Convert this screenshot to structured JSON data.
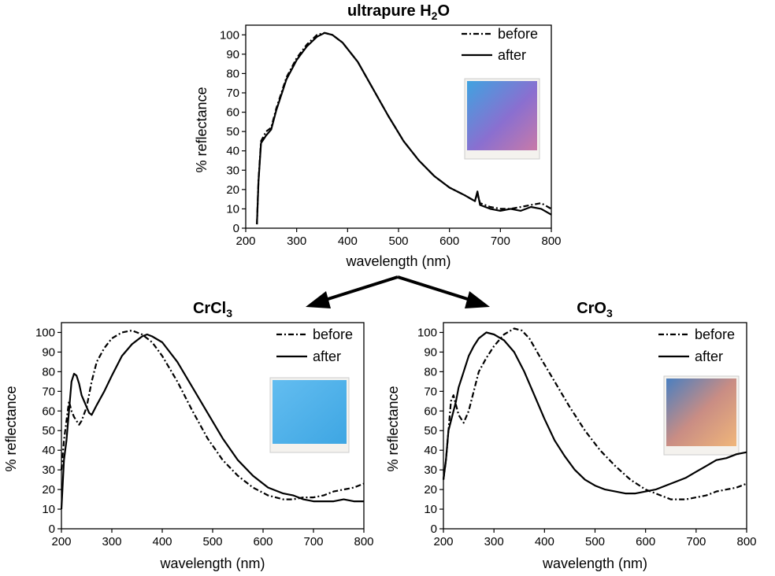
{
  "chart_data": [
    {
      "type": "line",
      "title": "ultrapure H",
      "title_sub": "2",
      "title_suffix": "O",
      "xlabel": "wavelength (nm)",
      "ylabel": "% reflectance",
      "xlim": [
        200,
        800
      ],
      "ylim": [
        0,
        105
      ],
      "xticks": [
        200,
        300,
        400,
        500,
        600,
        700,
        800
      ],
      "yticks": [
        0,
        10,
        20,
        30,
        40,
        50,
        60,
        70,
        80,
        90,
        100
      ],
      "legend_position": "top-right",
      "inset_color": "#8a6fd0",
      "series": [
        {
          "name": "before",
          "style": "dash-dot",
          "points": [
            [
              222,
              2
            ],
            [
              225,
              25
            ],
            [
              230,
              45
            ],
            [
              240,
              50
            ],
            [
              250,
              52
            ],
            [
              260,
              62
            ],
            [
              280,
              78
            ],
            [
              300,
              88
            ],
            [
              320,
              95
            ],
            [
              340,
              100
            ],
            [
              355,
              101
            ],
            [
              370,
              100
            ],
            [
              390,
              96
            ],
            [
              420,
              86
            ],
            [
              450,
              72
            ],
            [
              480,
              58
            ],
            [
              510,
              45
            ],
            [
              540,
              35
            ],
            [
              570,
              27
            ],
            [
              600,
              21
            ],
            [
              630,
              17
            ],
            [
              650,
              14
            ],
            [
              655,
              18
            ],
            [
              660,
              13
            ],
            [
              680,
              11
            ],
            [
              700,
              10
            ],
            [
              720,
              10
            ],
            [
              740,
              11
            ],
            [
              760,
              12
            ],
            [
              780,
              13
            ],
            [
              800,
              10
            ]
          ]
        },
        {
          "name": "after",
          "style": "solid",
          "points": [
            [
              222,
              2
            ],
            [
              225,
              24
            ],
            [
              230,
              44
            ],
            [
              240,
              48
            ],
            [
              250,
              51
            ],
            [
              260,
              61
            ],
            [
              280,
              77
            ],
            [
              300,
              87
            ],
            [
              320,
              94
            ],
            [
              340,
              99
            ],
            [
              355,
              101
            ],
            [
              370,
              100
            ],
            [
              390,
              96
            ],
            [
              420,
              86
            ],
            [
              450,
              72
            ],
            [
              480,
              58
            ],
            [
              510,
              45
            ],
            [
              540,
              35
            ],
            [
              570,
              27
            ],
            [
              600,
              21
            ],
            [
              630,
              17
            ],
            [
              650,
              14
            ],
            [
              655,
              19
            ],
            [
              660,
              12
            ],
            [
              680,
              10
            ],
            [
              700,
              9
            ],
            [
              720,
              10
            ],
            [
              740,
              9
            ],
            [
              760,
              11
            ],
            [
              780,
              10
            ],
            [
              800,
              7
            ]
          ]
        }
      ]
    },
    {
      "type": "line",
      "title": "CrCl",
      "title_sub": "3",
      "title_suffix": "",
      "xlabel": "wavelength (nm)",
      "ylabel": "% reflectance",
      "xlim": [
        200,
        800
      ],
      "ylim": [
        0,
        105
      ],
      "xticks": [
        200,
        300,
        400,
        500,
        600,
        700,
        800
      ],
      "yticks": [
        0,
        10,
        20,
        30,
        40,
        50,
        60,
        70,
        80,
        90,
        100
      ],
      "legend_position": "top-right",
      "inset_color": "#4fb0e8",
      "series": [
        {
          "name": "before",
          "style": "dash-dot",
          "points": [
            [
              200,
              30
            ],
            [
              205,
              45
            ],
            [
              210,
              55
            ],
            [
              215,
              65
            ],
            [
              220,
              60
            ],
            [
              225,
              57
            ],
            [
              230,
              55
            ],
            [
              235,
              53
            ],
            [
              240,
              55
            ],
            [
              250,
              62
            ],
            [
              260,
              75
            ],
            [
              270,
              85
            ],
            [
              285,
              92
            ],
            [
              300,
              97
            ],
            [
              320,
              100
            ],
            [
              340,
              101
            ],
            [
              360,
              99
            ],
            [
              380,
              95
            ],
            [
              400,
              88
            ],
            [
              430,
              75
            ],
            [
              460,
              60
            ],
            [
              490,
              46
            ],
            [
              520,
              35
            ],
            [
              550,
              27
            ],
            [
              580,
              21
            ],
            [
              610,
              17
            ],
            [
              640,
              15
            ],
            [
              660,
              15
            ],
            [
              680,
              16
            ],
            [
              700,
              16
            ],
            [
              720,
              17
            ],
            [
              740,
              19
            ],
            [
              760,
              20
            ],
            [
              780,
              21
            ],
            [
              800,
              23
            ]
          ]
        },
        {
          "name": "after",
          "style": "solid",
          "points": [
            [
              200,
              10
            ],
            [
              205,
              35
            ],
            [
              210,
              45
            ],
            [
              215,
              60
            ],
            [
              220,
              75
            ],
            [
              225,
              79
            ],
            [
              230,
              78
            ],
            [
              235,
              74
            ],
            [
              240,
              68
            ],
            [
              250,
              62
            ],
            [
              255,
              59
            ],
            [
              260,
              58
            ],
            [
              270,
              63
            ],
            [
              285,
              70
            ],
            [
              300,
              78
            ],
            [
              320,
              88
            ],
            [
              340,
              94
            ],
            [
              360,
              98
            ],
            [
              370,
              99
            ],
            [
              380,
              98
            ],
            [
              400,
              95
            ],
            [
              430,
              85
            ],
            [
              460,
              72
            ],
            [
              490,
              59
            ],
            [
              520,
              46
            ],
            [
              550,
              35
            ],
            [
              580,
              27
            ],
            [
              610,
              21
            ],
            [
              640,
              18
            ],
            [
              660,
              17
            ],
            [
              680,
              15
            ],
            [
              700,
              14
            ],
            [
              720,
              14
            ],
            [
              740,
              14
            ],
            [
              760,
              15
            ],
            [
              780,
              14
            ],
            [
              800,
              14
            ]
          ]
        }
      ]
    },
    {
      "type": "line",
      "title": "CrO",
      "title_sub": "3",
      "title_suffix": "",
      "xlabel": "wavelength (nm)",
      "ylabel": "% reflectance",
      "xlim": [
        200,
        800
      ],
      "ylim": [
        0,
        105
      ],
      "xticks": [
        200,
        300,
        400,
        500,
        600,
        700,
        800
      ],
      "yticks": [
        0,
        10,
        20,
        30,
        40,
        50,
        60,
        70,
        80,
        90,
        100
      ],
      "legend_position": "top-right",
      "inset_color": "#d89a78",
      "series": [
        {
          "name": "before",
          "style": "dash-dot",
          "points": [
            [
              200,
              25
            ],
            [
              205,
              35
            ],
            [
              210,
              50
            ],
            [
              215,
              65
            ],
            [
              220,
              68
            ],
            [
              225,
              63
            ],
            [
              230,
              58
            ],
            [
              240,
              54
            ],
            [
              250,
              60
            ],
            [
              260,
              70
            ],
            [
              270,
              80
            ],
            [
              285,
              87
            ],
            [
              300,
              93
            ],
            [
              320,
              99
            ],
            [
              340,
              102
            ],
            [
              355,
              101
            ],
            [
              370,
              97
            ],
            [
              390,
              88
            ],
            [
              420,
              75
            ],
            [
              450,
              62
            ],
            [
              480,
              50
            ],
            [
              510,
              40
            ],
            [
              540,
              32
            ],
            [
              570,
              25
            ],
            [
              600,
              20
            ],
            [
              630,
              17
            ],
            [
              650,
              15
            ],
            [
              660,
              15
            ],
            [
              680,
              15
            ],
            [
              700,
              16
            ],
            [
              720,
              17
            ],
            [
              740,
              19
            ],
            [
              760,
              20
            ],
            [
              780,
              21
            ],
            [
              800,
              23
            ]
          ]
        },
        {
          "name": "after",
          "style": "solid",
          "points": [
            [
              200,
              25
            ],
            [
              205,
              35
            ],
            [
              210,
              50
            ],
            [
              215,
              55
            ],
            [
              220,
              60
            ],
            [
              225,
              65
            ],
            [
              230,
              72
            ],
            [
              240,
              80
            ],
            [
              250,
              88
            ],
            [
              260,
              93
            ],
            [
              270,
              97
            ],
            [
              285,
              100
            ],
            [
              300,
              99
            ],
            [
              320,
              96
            ],
            [
              340,
              90
            ],
            [
              360,
              80
            ],
            [
              380,
              68
            ],
            [
              400,
              56
            ],
            [
              420,
              45
            ],
            [
              440,
              37
            ],
            [
              460,
              30
            ],
            [
              480,
              25
            ],
            [
              500,
              22
            ],
            [
              520,
              20
            ],
            [
              540,
              19
            ],
            [
              560,
              18
            ],
            [
              580,
              18
            ],
            [
              600,
              19
            ],
            [
              620,
              20
            ],
            [
              640,
              22
            ],
            [
              660,
              24
            ],
            [
              680,
              26
            ],
            [
              700,
              29
            ],
            [
              720,
              32
            ],
            [
              740,
              35
            ],
            [
              760,
              36
            ],
            [
              780,
              38
            ],
            [
              800,
              39
            ]
          ]
        }
      ]
    }
  ]
}
